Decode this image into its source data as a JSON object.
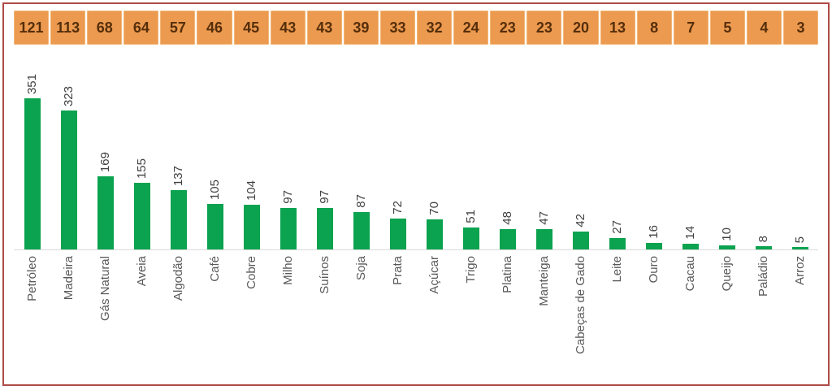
{
  "chart_data": {
    "type": "bar",
    "title": "",
    "xlabel": "",
    "ylabel": "",
    "grid": false,
    "legend": "none",
    "orientation": "vertical",
    "value_labels_rotated": true,
    "category_labels_rotated": true,
    "categories": [
      "Petróleo",
      "Madeira",
      "Gás Natural",
      "Aveia",
      "Algodão",
      "Café",
      "Cobre",
      "Milho",
      "Suínos",
      "Soja",
      "Prata",
      "Açúcar",
      "Trigo",
      "Platina",
      "Manteiga",
      "Cabeças de Gado",
      "Leite",
      "Ouro",
      "Cacau",
      "Queijo",
      "Paládio",
      "Arroz"
    ],
    "values": [
      351,
      323,
      169,
      155,
      137,
      105,
      104,
      97,
      97,
      87,
      72,
      70,
      51,
      48,
      47,
      42,
      27,
      16,
      14,
      10,
      8,
      5
    ],
    "header_values": [
      121,
      113,
      68,
      64,
      57,
      46,
      45,
      43,
      43,
      39,
      33,
      32,
      24,
      23,
      23,
      20,
      13,
      8,
      7,
      5,
      4,
      3
    ]
  },
  "colors": {
    "bar_green": "#0ba34f",
    "header_orange": "#ec9a4f",
    "header_cell_border": "#f3b779",
    "header_text": "#552e0b",
    "frame_border": "#ae4a45",
    "axis_line": "#d9d9d9",
    "value_label_text": "#404040",
    "category_label_text": "#595959"
  }
}
